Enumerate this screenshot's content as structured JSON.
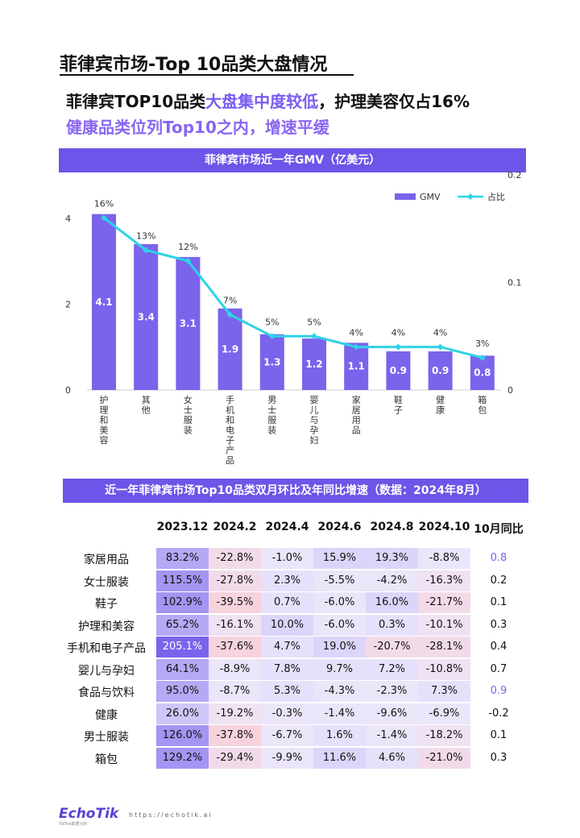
{
  "page": {
    "title": "菲律宾市场-Top 10品类大盘情况",
    "headline_a": "菲律宾TOP10品类",
    "headline_b": "大盘集中度较低",
    "headline_c": "，护理美容仅占16%",
    "subhead": "健康品类位列Top10之内，增速平缓"
  },
  "chart_data": [
    {
      "type": "bar",
      "title": "菲律宾市场近一年GMV（亿美元）",
      "categories": [
        "护理和美容",
        "其他",
        "女士服装",
        "手机和电子产品",
        "男士服装",
        "婴儿与孕妇",
        "家居用品",
        "鞋子",
        "健康",
        "箱包"
      ],
      "series": [
        {
          "name": "GMV",
          "kind": "bar",
          "axis": "left",
          "values": [
            4.1,
            3.4,
            3.1,
            1.9,
            1.3,
            1.2,
            1.1,
            0.9,
            0.9,
            0.8
          ]
        },
        {
          "name": "占比",
          "kind": "line",
          "axis": "right",
          "values": [
            0.16,
            0.13,
            0.12,
            0.07,
            0.05,
            0.05,
            0.04,
            0.04,
            0.04,
            0.03
          ],
          "labels": [
            "16%",
            "13%",
            "12%",
            "7%",
            "5%",
            "5%",
            "4%",
            "4%",
            "4%",
            "3%"
          ]
        }
      ],
      "ylim": [
        0,
        4.5
      ],
      "yticks": [
        "0",
        "2",
        "4"
      ],
      "y2lim": [
        0,
        0.2
      ],
      "y2ticks": [
        "0",
        "0.1",
        "0.2"
      ],
      "legend_position": "top-right",
      "colors": {
        "bar": "#7b63ec",
        "line": "#2ed3e6",
        "bar_label": "#ffffff"
      }
    },
    {
      "type": "table",
      "title": "近一年菲律宾市场Top10品类双月环比及年同比增速（数据：2024年8月）",
      "columns": [
        "2023.12",
        "2024.2",
        "2024.4",
        "2024.6",
        "2024.8",
        "2024.10",
        "10月同比"
      ],
      "rows": [
        {
          "name": "家居用品",
          "values": [
            "83.2%",
            "-22.8%",
            "-1.0%",
            "15.9%",
            "19.3%",
            "-8.8%"
          ],
          "yoy": "0.8"
        },
        {
          "name": "女士服装",
          "values": [
            "115.5%",
            "-27.8%",
            "2.3%",
            "-5.5%",
            "-4.2%",
            "-16.3%"
          ],
          "yoy": "0.2"
        },
        {
          "name": "鞋子",
          "values": [
            "102.9%",
            "-39.5%",
            "0.7%",
            "-6.0%",
            "16.0%",
            "-21.7%"
          ],
          "yoy": "0.1"
        },
        {
          "name": "护理和美容",
          "values": [
            "65.2%",
            "-16.1%",
            "10.0%",
            "-6.0%",
            "0.3%",
            "-10.1%"
          ],
          "yoy": "0.3"
        },
        {
          "name": "手机和电子产品",
          "values": [
            "205.1%",
            "-37.6%",
            "4.7%",
            "19.0%",
            "-20.7%",
            "-28.1%"
          ],
          "yoy": "0.4"
        },
        {
          "name": "婴儿与孕妇",
          "values": [
            "64.1%",
            "-8.9%",
            "7.8%",
            "9.7%",
            "7.2%",
            "-10.8%"
          ],
          "yoy": "0.7"
        },
        {
          "name": "食品与饮料",
          "values": [
            "95.0%",
            "-8.7%",
            "5.3%",
            "-4.3%",
            "-2.3%",
            "7.3%"
          ],
          "yoy": "0.9"
        },
        {
          "name": "健康",
          "values": [
            "26.0%",
            "-19.2%",
            "-0.3%",
            "-1.4%",
            "-9.6%",
            "-6.9%"
          ],
          "yoy": "-0.2"
        },
        {
          "name": "男士服装",
          "values": [
            "126.0%",
            "-37.8%",
            "-6.7%",
            "1.6%",
            "-1.4%",
            "-18.2%"
          ],
          "yoy": "0.1"
        },
        {
          "name": "箱包",
          "values": [
            "129.2%",
            "-29.4%",
            "-9.9%",
            "11.6%",
            "4.6%",
            "-21.0%"
          ],
          "yoy": "0.3"
        }
      ],
      "colors": {
        "high": "#7b63ec",
        "mid": "#e6e2fb",
        "low": "#f5d0d6",
        "yoy_highlight": "#7b63ec"
      }
    }
  ],
  "footer": {
    "logo": "EchoTik",
    "logo_sub": "TikTok数据分析",
    "url": "https://echotik.ai"
  }
}
